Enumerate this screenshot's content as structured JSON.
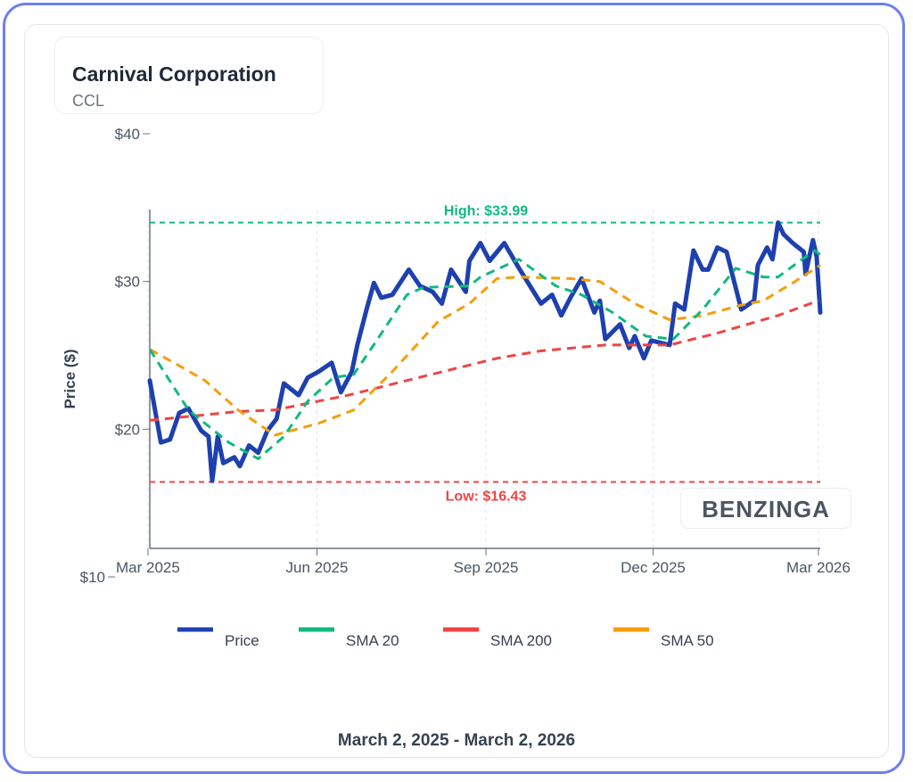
{
  "header": {
    "company": "Carnival Corporation",
    "ticker": "CCL"
  },
  "footer": {
    "date_range": "March 2, 2025 - March 2, 2026"
  },
  "watermark": "BENZINGA",
  "chart_data": {
    "type": "line",
    "ylabel": "Price ($)",
    "xlabel": "",
    "ylim": [
      10,
      40
    ],
    "xlim": [
      "2025-03-02",
      "2026-03-02"
    ],
    "y_ticks": [
      "$10",
      "$20",
      "$30",
      "$40"
    ],
    "y_tick_values": [
      10,
      20,
      30,
      40
    ],
    "x_ticks": [
      "Mar 2025",
      "Jun 2025",
      "Sep 2025",
      "Dec 2025",
      "Mar 2026"
    ],
    "x_tick_values": [
      "2025-03-01",
      "2025-06-01",
      "2025-09-01",
      "2025-12-01",
      "2026-03-01"
    ],
    "grid": "vertical dashed",
    "legend": "bottom",
    "annotations": [
      {
        "label": "High: $33.99",
        "value": 33.99,
        "color": "#10b981"
      },
      {
        "label": "Low: $16.43",
        "value": 16.43,
        "color": "#ef4444"
      }
    ],
    "series": [
      {
        "name": "Price",
        "color": "#1e40af",
        "style": "solid",
        "points": [
          [
            "2025-03-02",
            23.3
          ],
          [
            "2025-03-04",
            21.9
          ],
          [
            "2025-03-08",
            19.1
          ],
          [
            "2025-03-13",
            19.3
          ],
          [
            "2025-03-18",
            21.1
          ],
          [
            "2025-03-23",
            21.4
          ],
          [
            "2025-03-30",
            19.9
          ],
          [
            "2025-04-03",
            19.5
          ],
          [
            "2025-04-05",
            16.5
          ],
          [
            "2025-04-08",
            19.5
          ],
          [
            "2025-04-11",
            17.7
          ],
          [
            "2025-04-17",
            18.1
          ],
          [
            "2025-04-20",
            17.5
          ],
          [
            "2025-04-25",
            18.9
          ],
          [
            "2025-04-30",
            18.4
          ],
          [
            "2025-05-05",
            19.9
          ],
          [
            "2025-05-10",
            20.7
          ],
          [
            "2025-05-14",
            23.1
          ],
          [
            "2025-05-22",
            22.3
          ],
          [
            "2025-05-27",
            23.5
          ],
          [
            "2025-06-02",
            23.9
          ],
          [
            "2025-06-09",
            24.5
          ],
          [
            "2025-06-14",
            22.5
          ],
          [
            "2025-06-20",
            23.9
          ],
          [
            "2025-06-23",
            25.7
          ],
          [
            "2025-06-28",
            28.1
          ],
          [
            "2025-07-02",
            29.9
          ],
          [
            "2025-07-06",
            28.9
          ],
          [
            "2025-07-12",
            29.1
          ],
          [
            "2025-07-21",
            30.8
          ],
          [
            "2025-07-27",
            29.7
          ],
          [
            "2025-08-03",
            29.3
          ],
          [
            "2025-08-08",
            28.5
          ],
          [
            "2025-08-13",
            30.8
          ],
          [
            "2025-08-21",
            29.3
          ],
          [
            "2025-08-23",
            31.4
          ],
          [
            "2025-08-29",
            32.6
          ],
          [
            "2025-09-03",
            31.4
          ],
          [
            "2025-09-11",
            32.6
          ],
          [
            "2025-09-19",
            30.9
          ],
          [
            "2025-10-01",
            28.5
          ],
          [
            "2025-10-07",
            29.1
          ],
          [
            "2025-10-12",
            27.7
          ],
          [
            "2025-10-17",
            28.9
          ],
          [
            "2025-10-23",
            30.2
          ],
          [
            "2025-10-30",
            27.9
          ],
          [
            "2025-11-02",
            28.7
          ],
          [
            "2025-11-05",
            26.1
          ],
          [
            "2025-11-13",
            27.1
          ],
          [
            "2025-11-18",
            25.5
          ],
          [
            "2025-11-21",
            26.3
          ],
          [
            "2025-11-26",
            24.8
          ],
          [
            "2025-11-30",
            26.0
          ],
          [
            "2025-12-10",
            25.7
          ],
          [
            "2025-12-13",
            28.5
          ],
          [
            "2025-12-18",
            28.1
          ],
          [
            "2025-12-23",
            32.1
          ],
          [
            "2025-12-28",
            30.8
          ],
          [
            "2025-12-31",
            30.8
          ],
          [
            "2026-01-05",
            32.3
          ],
          [
            "2026-01-10",
            32.0
          ],
          [
            "2026-01-18",
            28.1
          ],
          [
            "2026-01-25",
            28.7
          ],
          [
            "2026-01-27",
            31.1
          ],
          [
            "2026-02-01",
            32.3
          ],
          [
            "2026-02-04",
            31.5
          ],
          [
            "2026-02-07",
            33.99
          ],
          [
            "2026-02-10",
            33.2
          ],
          [
            "2026-02-15",
            32.6
          ],
          [
            "2026-02-21",
            32.0
          ],
          [
            "2026-02-22",
            30.5
          ],
          [
            "2026-02-26",
            32.8
          ],
          [
            "2026-02-28",
            31.7
          ],
          [
            "2026-03-02",
            27.9
          ]
        ]
      },
      {
        "name": "SMA 20",
        "color": "#10b981",
        "style": "dashed",
        "points": [
          [
            "2025-03-02",
            25.4
          ],
          [
            "2025-03-23",
            21.3
          ],
          [
            "2025-04-14",
            19.1
          ],
          [
            "2025-04-30",
            18.0
          ],
          [
            "2025-05-14",
            19.5
          ],
          [
            "2025-05-27",
            21.9
          ],
          [
            "2025-06-10",
            23.5
          ],
          [
            "2025-06-21",
            23.7
          ],
          [
            "2025-07-04",
            26.1
          ],
          [
            "2025-07-20",
            29.1
          ],
          [
            "2025-07-29",
            29.6
          ],
          [
            "2025-08-23",
            29.7
          ],
          [
            "2025-08-29",
            30.3
          ],
          [
            "2025-09-19",
            31.5
          ],
          [
            "2025-10-09",
            29.7
          ],
          [
            "2025-10-23",
            29.1
          ],
          [
            "2025-11-09",
            27.9
          ],
          [
            "2025-11-27",
            26.3
          ],
          [
            "2025-12-12",
            26.1
          ],
          [
            "2025-12-28",
            28.1
          ],
          [
            "2026-01-15",
            30.9
          ],
          [
            "2026-01-30",
            30.3
          ],
          [
            "2026-02-07",
            30.3
          ],
          [
            "2026-02-19",
            31.4
          ],
          [
            "2026-02-27",
            32.1
          ],
          [
            "2026-03-02",
            31.8
          ]
        ]
      },
      {
        "name": "SMA 200",
        "color": "#ef4444",
        "style": "dashed",
        "points": [
          [
            "2025-03-02",
            20.6
          ],
          [
            "2025-04-19",
            21.2
          ],
          [
            "2025-05-09",
            21.3
          ],
          [
            "2025-06-18",
            22.3
          ],
          [
            "2025-07-20",
            23.3
          ],
          [
            "2025-09-07",
            24.8
          ],
          [
            "2025-10-01",
            25.3
          ],
          [
            "2025-11-05",
            25.7
          ],
          [
            "2025-12-10",
            25.7
          ],
          [
            "2026-01-05",
            26.5
          ],
          [
            "2026-02-07",
            27.7
          ],
          [
            "2026-03-01",
            28.7
          ]
        ]
      },
      {
        "name": "SMA 50",
        "color": "#f59e0b",
        "style": "dashed",
        "points": [
          [
            "2025-03-02",
            25.4
          ],
          [
            "2025-03-18",
            24.3
          ],
          [
            "2025-04-01",
            23.3
          ],
          [
            "2025-04-19",
            21.3
          ],
          [
            "2025-05-09",
            19.6
          ],
          [
            "2025-06-02",
            20.4
          ],
          [
            "2025-06-21",
            21.3
          ],
          [
            "2025-07-12",
            23.9
          ],
          [
            "2025-08-06",
            27.3
          ],
          [
            "2025-08-23",
            28.5
          ],
          [
            "2025-09-07",
            30.2
          ],
          [
            "2025-09-19",
            30.3
          ],
          [
            "2025-10-17",
            30.2
          ],
          [
            "2025-11-02",
            30.0
          ],
          [
            "2025-11-21",
            28.5
          ],
          [
            "2025-12-10",
            27.4
          ],
          [
            "2025-12-28",
            27.7
          ],
          [
            "2026-01-18",
            28.4
          ],
          [
            "2026-01-30",
            28.7
          ],
          [
            "2026-02-15",
            29.9
          ],
          [
            "2026-03-02",
            31.1
          ]
        ]
      }
    ]
  }
}
